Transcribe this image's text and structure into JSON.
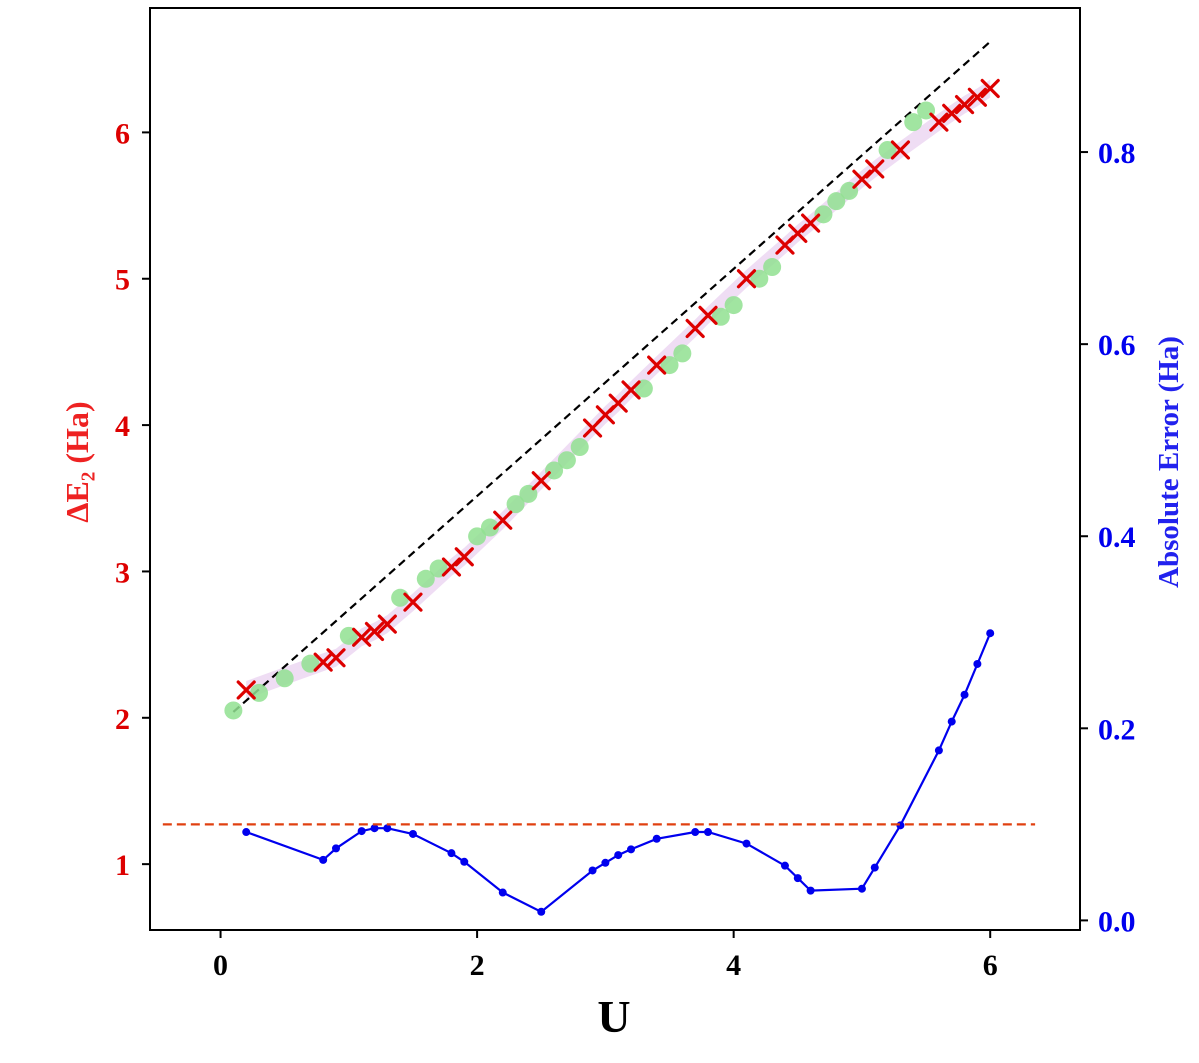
{
  "chart_data": {
    "type": "line",
    "xlabel": "U",
    "ylabel_left": "ΔE₂ (Ha)",
    "ylabel_right": "Absolute Error (Ha)",
    "xlim": [
      -0.55,
      6.7
    ],
    "ylim_left": [
      0.55,
      6.85
    ],
    "ylim_right": [
      -0.01,
      0.95
    ],
    "x_ticks": [
      "0",
      "2",
      "4",
      "6"
    ],
    "y_left_ticks": [
      "1",
      "2",
      "3",
      "4",
      "5",
      "6"
    ],
    "y_right_ticks": [
      "0.0",
      "0.2",
      "0.4",
      "0.6",
      "0.8"
    ],
    "grid": false,
    "colors": {
      "left_axis": "#dd0000",
      "right_axis": "#0000ee",
      "green_points": "#90e090",
      "red_crosses": "#dd0000",
      "fit_line": "#000000",
      "band": "#dcb4e6",
      "error_line": "#0000ee",
      "threshold": "#e04010"
    },
    "series": [
      {
        "type": "scatter",
        "marker": "circle",
        "axis": "left",
        "x": [
          0.1,
          0.3,
          0.5,
          0.7,
          1.0,
          1.4,
          1.6,
          1.7,
          2.0,
          2.1,
          2.3,
          2.4,
          2.6,
          2.7,
          2.8,
          3.3,
          3.5,
          3.6,
          3.9,
          4.0,
          4.2,
          4.3,
          4.7,
          4.8,
          4.9,
          5.2,
          5.4,
          5.5
        ],
        "values": [
          2.05,
          2.17,
          2.27,
          2.37,
          2.56,
          2.82,
          2.95,
          3.02,
          3.24,
          3.3,
          3.46,
          3.53,
          3.69,
          3.76,
          3.85,
          4.25,
          4.41,
          4.49,
          4.74,
          4.82,
          5.0,
          5.08,
          5.44,
          5.53,
          5.6,
          5.88,
          6.07,
          6.15
        ]
      },
      {
        "type": "scatter",
        "marker": "x",
        "axis": "left",
        "x": [
          0.2,
          0.8,
          0.9,
          1.1,
          1.2,
          1.3,
          1.5,
          1.8,
          1.9,
          2.2,
          2.5,
          2.9,
          3.0,
          3.1,
          3.2,
          3.4,
          3.7,
          3.8,
          4.1,
          4.4,
          4.5,
          4.6,
          5.0,
          5.1,
          5.3,
          5.6,
          5.7,
          5.8,
          5.9,
          6.0
        ],
        "values": [
          2.19,
          2.38,
          2.41,
          2.55,
          2.59,
          2.64,
          2.79,
          3.03,
          3.1,
          3.35,
          3.62,
          3.98,
          4.07,
          4.15,
          4.24,
          4.41,
          4.66,
          4.75,
          5.0,
          5.23,
          5.31,
          5.38,
          5.68,
          5.75,
          5.88,
          6.07,
          6.13,
          6.19,
          6.24,
          6.3
        ]
      },
      {
        "type": "line",
        "style": "dashed",
        "axis": "left",
        "x": [
          0.1,
          6.0
        ],
        "values": [
          2.04,
          6.62
        ]
      },
      {
        "type": "line",
        "marker": "dot",
        "axis": "right",
        "x": [
          0.2,
          0.8,
          0.9,
          1.1,
          1.2,
          1.3,
          1.5,
          1.8,
          1.9,
          2.2,
          2.5,
          2.9,
          3.0,
          3.1,
          3.2,
          3.4,
          3.7,
          3.8,
          4.1,
          4.4,
          4.5,
          4.6,
          5.0,
          5.1,
          5.3,
          5.6,
          5.7,
          5.8,
          5.9,
          6.0
        ],
        "values": [
          0.092,
          0.063,
          0.075,
          0.093,
          0.096,
          0.096,
          0.09,
          0.07,
          0.061,
          0.029,
          0.009,
          0.052,
          0.06,
          0.068,
          0.074,
          0.085,
          0.092,
          0.092,
          0.08,
          0.057,
          0.044,
          0.031,
          0.033,
          0.055,
          0.099,
          0.177,
          0.207,
          0.235,
          0.267,
          0.299
        ]
      },
      {
        "type": "hline",
        "style": "dashed",
        "axis": "right",
        "value": 0.1,
        "x_range": [
          -0.45,
          6.35
        ]
      }
    ]
  }
}
